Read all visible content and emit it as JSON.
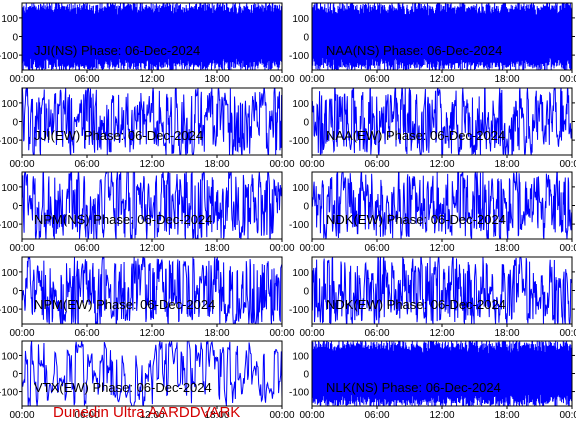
{
  "footer": {
    "text": "Dunedin Ultra AARDDVARK",
    "color": "#d40000"
  },
  "chart_data": {
    "type": "line",
    "date": "06-Dec-2024",
    "x_ticks": [
      "00:00",
      "06:00",
      "12:00",
      "18:00",
      "00:00"
    ],
    "y_ticks": [
      100,
      0,
      -100
    ],
    "ylim": [
      -180,
      180
    ],
    "trace_color": "#0000ff",
    "panels": [
      {
        "title": "JJI(NS) Phase: 06-Dec-2024",
        "y_axis_side": "left",
        "density": "solid"
      },
      {
        "title": "NAA(NS) Phase: 06-Dec-2024",
        "y_axis_side": "right",
        "density": "solid"
      },
      {
        "title": "JJI(EW) Phase: 06-Dec-2024",
        "y_axis_side": "left",
        "density": "dense"
      },
      {
        "title": "NAA(EW) Phase: 06-Dec-2024",
        "y_axis_side": "right",
        "density": "dense"
      },
      {
        "title": "NPM(NS) Phase: 06-Dec-2024",
        "y_axis_side": "left",
        "density": "dense"
      },
      {
        "title": "NDK(EW) Phase: 06-Dec-2024",
        "y_axis_side": "right",
        "density": "dense"
      },
      {
        "title": "NPM(EW) Phase: 06-Dec-2024",
        "y_axis_side": "left",
        "density": "dense"
      },
      {
        "title": "NDK(EW) Phase: 06-Dec-2024",
        "y_axis_side": "right",
        "density": "dense"
      },
      {
        "title": "VTX(EW) Phase: 06-Dec-2024",
        "y_axis_side": "left",
        "density": "medium"
      },
      {
        "title": "NLK(NS) Phase: 06-Dec-2024",
        "y_axis_side": "right",
        "density": "solid"
      }
    ]
  }
}
